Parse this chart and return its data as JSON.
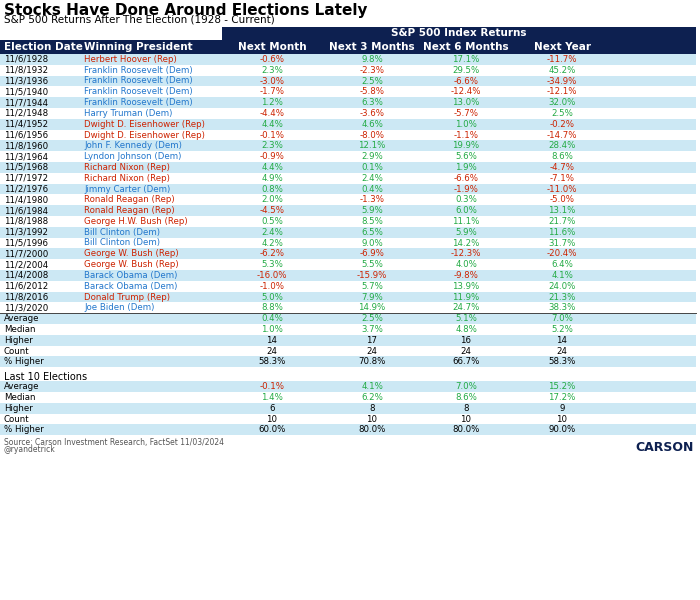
{
  "title": "Stocks Have Done Around Elections Lately",
  "subtitle": "S&P 500 Returns After The Election (1928 - Current)",
  "header_bg": "#0d2050",
  "header_text": "S&P 500 Index Returns",
  "col_headers": [
    "Election Date",
    "Winning President",
    "Next Month",
    "Next 3 Months",
    "Next 6 Months",
    "Next Year"
  ],
  "rows": [
    [
      "11/6/1928",
      "Herbert Hoover (Rep)",
      "-0.6%",
      "9.8%",
      "17.1%",
      "-11.7%"
    ],
    [
      "11/8/1932",
      "Franklin Roosevelt (Dem)",
      "2.3%",
      "-2.3%",
      "29.5%",
      "45.2%"
    ],
    [
      "11/3/1936",
      "Franklin Roosevelt (Dem)",
      "-3.0%",
      "2.5%",
      "-6.6%",
      "-34.9%"
    ],
    [
      "11/5/1940",
      "Franklin Roosevelt (Dem)",
      "-1.7%",
      "-5.8%",
      "-12.4%",
      "-12.1%"
    ],
    [
      "11/7/1944",
      "Franklin Roosevelt (Dem)",
      "1.2%",
      "6.3%",
      "13.0%",
      "32.0%"
    ],
    [
      "11/2/1948",
      "Harry Truman (Dem)",
      "-4.4%",
      "-3.6%",
      "-5.7%",
      "2.5%"
    ],
    [
      "11/4/1952",
      "Dwight D. Eisenhower (Rep)",
      "4.4%",
      "4.6%",
      "1.0%",
      "-0.2%"
    ],
    [
      "11/6/1956",
      "Dwight D. Eisenhower (Rep)",
      "-0.1%",
      "-8.0%",
      "-1.1%",
      "-14.7%"
    ],
    [
      "11/8/1960",
      "John F. Kennedy (Dem)",
      "2.3%",
      "12.1%",
      "19.9%",
      "28.4%"
    ],
    [
      "11/3/1964",
      "Lyndon Johnson (Dem)",
      "-0.9%",
      "2.9%",
      "5.6%",
      "8.6%"
    ],
    [
      "11/5/1968",
      "Richard Nixon (Rep)",
      "4.4%",
      "0.1%",
      "1.9%",
      "-4.7%"
    ],
    [
      "11/7/1972",
      "Richard Nixon (Rep)",
      "4.9%",
      "2.4%",
      "-6.6%",
      "-7.1%"
    ],
    [
      "11/2/1976",
      "Jimmy Carter (Dem)",
      "0.8%",
      "0.4%",
      "-1.9%",
      "-11.0%"
    ],
    [
      "11/4/1980",
      "Ronald Reagan (Rep)",
      "2.0%",
      "-1.3%",
      "0.3%",
      "-5.0%"
    ],
    [
      "11/6/1984",
      "Ronald Reagan (Rep)",
      "-4.5%",
      "5.9%",
      "6.0%",
      "13.1%"
    ],
    [
      "11/8/1988",
      "George H.W. Bush (Rep)",
      "0.5%",
      "8.5%",
      "11.1%",
      "21.7%"
    ],
    [
      "11/3/1992",
      "Bill Clinton (Dem)",
      "2.4%",
      "6.5%",
      "5.9%",
      "11.6%"
    ],
    [
      "11/5/1996",
      "Bill Clinton (Dem)",
      "4.2%",
      "9.0%",
      "14.2%",
      "31.7%"
    ],
    [
      "11/7/2000",
      "George W. Bush (Rep)",
      "-6.2%",
      "-6.9%",
      "-12.3%",
      "-20.4%"
    ],
    [
      "11/2/2004",
      "George W. Bush (Rep)",
      "5.3%",
      "5.5%",
      "4.0%",
      "6.4%"
    ],
    [
      "11/4/2008",
      "Barack Obama (Dem)",
      "-16.0%",
      "-15.9%",
      "-9.8%",
      "4.1%"
    ],
    [
      "11/6/2012",
      "Barack Obama (Dem)",
      "-1.0%",
      "5.7%",
      "13.9%",
      "24.0%"
    ],
    [
      "11/8/2016",
      "Donald Trump (Rep)",
      "5.0%",
      "7.9%",
      "11.9%",
      "21.3%"
    ],
    [
      "11/3/2020",
      "Joe Biden (Dem)",
      "8.8%",
      "14.9%",
      "24.7%",
      "38.3%"
    ]
  ],
  "party_colors": {
    "Rep": "#cc2200",
    "Dem": "#2277cc"
  },
  "pos_color": "#22aa44",
  "neg_color": "#cc2200",
  "row_bg_light": "#cce8f4",
  "row_bg_white": "#ffffff",
  "stats_rows": [
    [
      "Average",
      "",
      "0.4%",
      "2.5%",
      "5.1%",
      "7.0%"
    ],
    [
      "Median",
      "",
      "1.0%",
      "3.7%",
      "4.8%",
      "5.2%"
    ],
    [
      "Higher",
      "",
      "14",
      "17",
      "16",
      "14"
    ],
    [
      "Count",
      "",
      "24",
      "24",
      "24",
      "24"
    ],
    [
      "% Higher",
      "",
      "58.3%",
      "70.8%",
      "66.7%",
      "58.3%"
    ]
  ],
  "last10_label": "Last 10 Elections",
  "last10_rows": [
    [
      "Average",
      "",
      "-0.1%",
      "4.1%",
      "7.0%",
      "15.2%"
    ],
    [
      "Median",
      "",
      "1.4%",
      "6.2%",
      "8.6%",
      "17.2%"
    ],
    [
      "Higher",
      "",
      "6",
      "8",
      "8",
      "9"
    ],
    [
      "Count",
      "",
      "10",
      "10",
      "10",
      "10"
    ],
    [
      "% Higher",
      "",
      "60.0%",
      "80.0%",
      "80.0%",
      "90.0%"
    ]
  ],
  "source_text": "Source: Carson Investment Research, FactSet 11/03/2024",
  "source_text2": "@ryandetrick",
  "title_fontsize": 11,
  "subtitle_fontsize": 7.5,
  "header_fontsize": 7.5,
  "data_fontsize": 6.2
}
